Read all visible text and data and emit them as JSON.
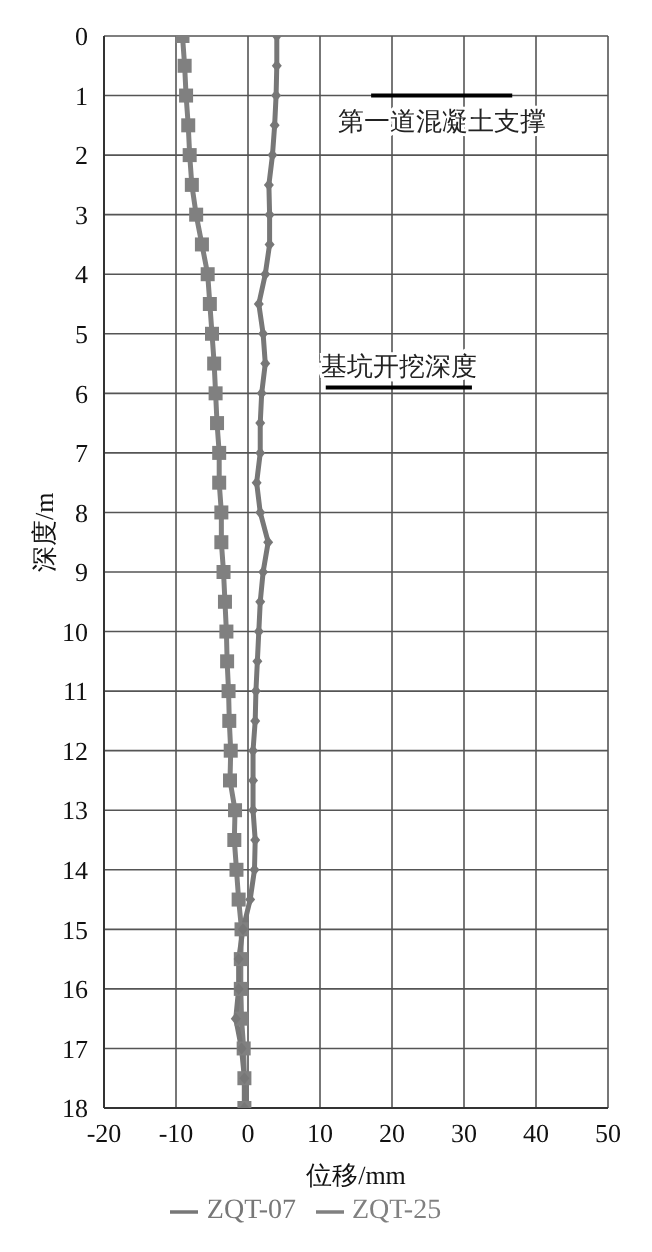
{
  "chart_data": {
    "type": "line",
    "orientation": "horizontal",
    "xlabel": "位移/mm",
    "ylabel": "深度/m",
    "x": [
      0,
      0.5,
      1,
      1.5,
      2,
      2.5,
      3,
      3.5,
      4,
      4.5,
      5,
      5.5,
      6,
      6.5,
      7,
      7.5,
      8,
      8.5,
      9,
      9.5,
      10,
      10.5,
      11,
      11.5,
      12,
      12.5,
      13,
      13.5,
      14,
      14.5,
      15,
      15.5,
      16,
      16.5,
      17,
      17.5,
      18
    ],
    "series": [
      {
        "name": "ZQT-07",
        "color": "#777777",
        "marker": "diamond",
        "values": [
          4.0,
          4.0,
          3.9,
          3.7,
          3.4,
          2.9,
          3.0,
          3.0,
          2.4,
          1.5,
          2.1,
          2.4,
          1.9,
          1.7,
          1.7,
          1.2,
          1.7,
          2.8,
          2.1,
          1.7,
          1.5,
          1.3,
          1.1,
          1.0,
          0.7,
          0.7,
          0.7,
          1.0,
          0.9,
          0.3,
          -0.7,
          -1.3,
          -1.3,
          -1.7,
          -0.9,
          -0.5,
          -0.5
        ]
      },
      {
        "name": "ZQT-25",
        "color": "#808080",
        "marker": "square",
        "values": [
          -9.1,
          -8.8,
          -8.6,
          -8.3,
          -8.1,
          -7.8,
          -7.2,
          -6.4,
          -5.6,
          -5.3,
          -5.0,
          -4.7,
          -4.5,
          -4.3,
          -4.0,
          -4.0,
          -3.7,
          -3.7,
          -3.4,
          -3.2,
          -3.0,
          -2.9,
          -2.7,
          -2.6,
          -2.4,
          -2.5,
          -1.8,
          -1.9,
          -1.6,
          -1.3,
          -0.9,
          -1.0,
          -1.0,
          -0.9,
          -0.6,
          -0.5,
          -0.5
        ]
      }
    ],
    "xlim": [
      -20,
      50
    ],
    "xticks": [
      -20,
      -10,
      0,
      10,
      20,
      30,
      40,
      50
    ],
    "ylim": [
      18,
      0
    ],
    "yticks": [
      0,
      1,
      2,
      3,
      4,
      5,
      6,
      7,
      8,
      9,
      10,
      11,
      12,
      13,
      14,
      15,
      16,
      17,
      18
    ],
    "ref_lines": [
      {
        "axis": "y",
        "value": 1,
        "label": "第一道混凝土支撑",
        "color": "#000000"
      },
      {
        "axis": "y",
        "value": 5.9,
        "label": "基坑开挖深度",
        "color": "#000000"
      }
    ],
    "grid": true,
    "legend": "bottom",
    "line_style": "solid"
  }
}
